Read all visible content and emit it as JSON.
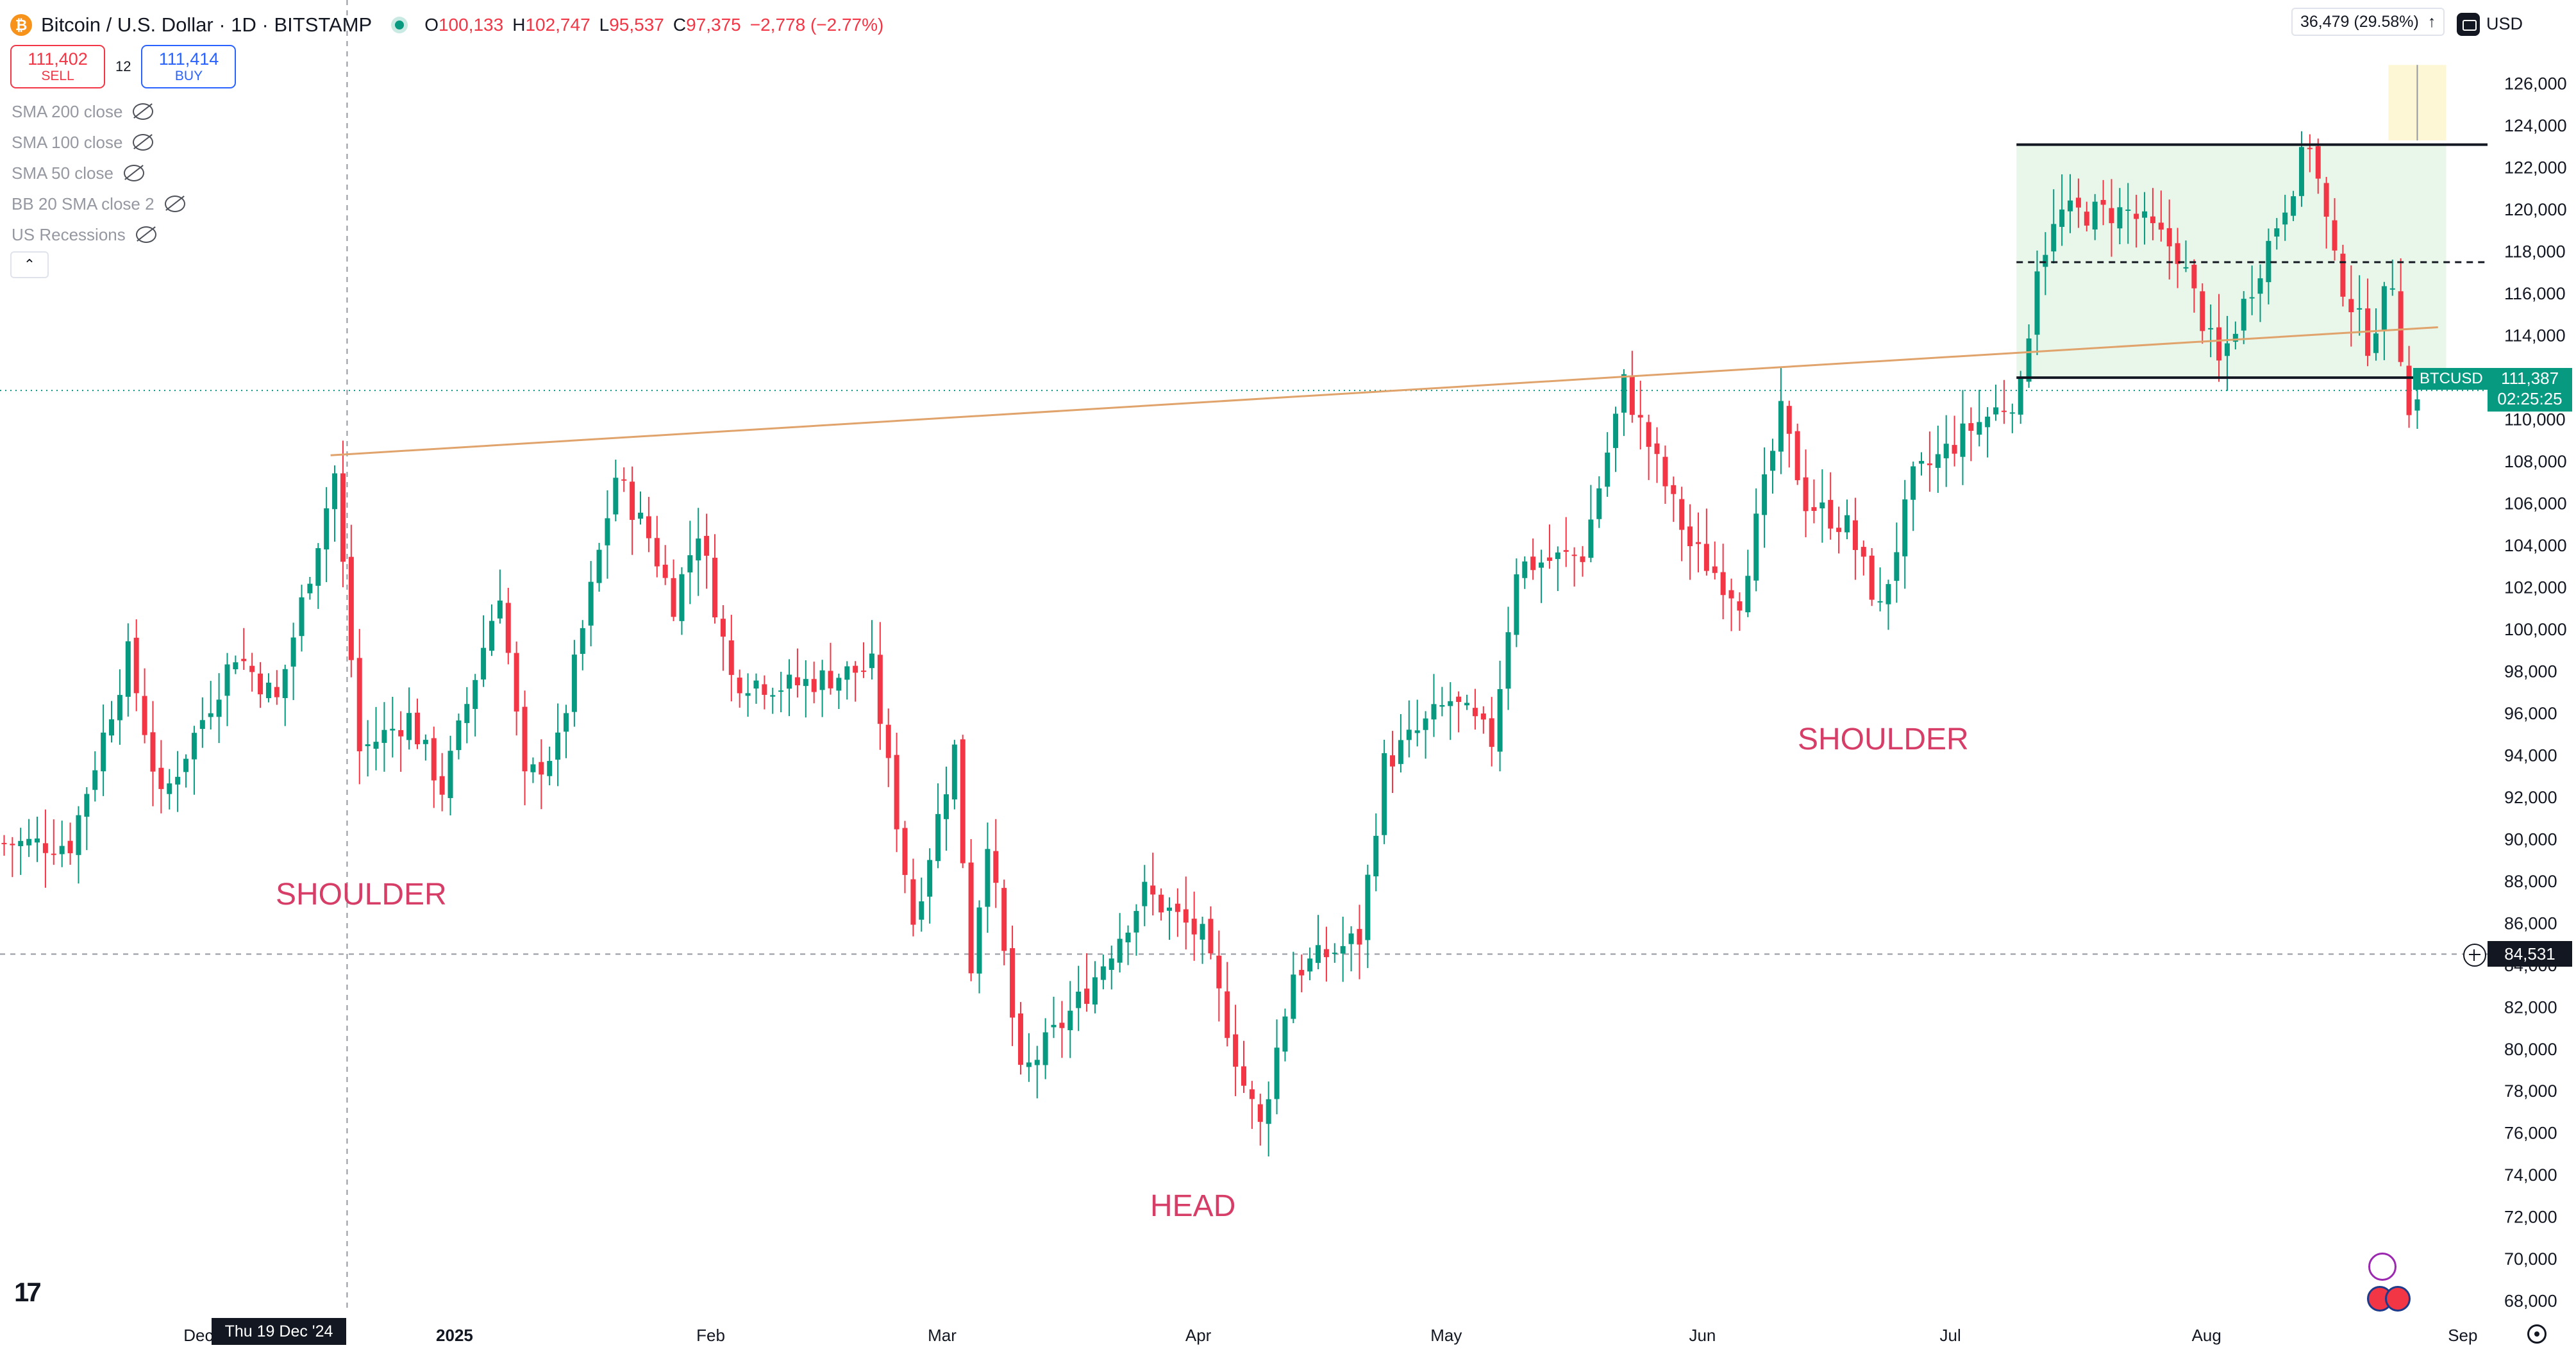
{
  "header": {
    "symbol": "Bitcoin / U.S. Dollar · 1D · BITSTAMP",
    "coin_icon": "bitcoin-icon",
    "o_label": "O",
    "o_value": "100,133",
    "h_label": "H",
    "h_value": "102,747",
    "l_label": "L",
    "l_value": "95,537",
    "c_label": "C",
    "c_value": "97,375",
    "change": "−2,778 (−2.77%)"
  },
  "trade": {
    "sell_price": "111,402",
    "sell_label": "SELL",
    "spread": "12",
    "buy_price": "111,414",
    "buy_label": "BUY"
  },
  "indicators": [
    "SMA 200 close",
    "SMA 100 close",
    "SMA 50 close",
    "BB 20 SMA close 2",
    "US Recessions"
  ],
  "price_axis": {
    "currency": "USD",
    "ticks": [
      "126,000",
      "124,000",
      "122,000",
      "120,000",
      "118,000",
      "116,000",
      "114,000",
      "112,000",
      "110,000",
      "108,000",
      "106,000",
      "104,000",
      "102,000",
      "100,000",
      "98,000",
      "96,000",
      "94,000",
      "92,000",
      "90,000",
      "88,000",
      "86,000",
      "84,000",
      "82,000",
      "80,000",
      "78,000",
      "76,000",
      "74,000",
      "72,000",
      "70,000",
      "68,000"
    ]
  },
  "time_axis": {
    "ticks": [
      "Dec",
      "2025",
      "Feb",
      "Mar",
      "Apr",
      "May",
      "Jun",
      "Jul",
      "Aug",
      "Sep"
    ],
    "crosshair_label": "Thu 19 Dec '24"
  },
  "labels": {
    "symbol_tag": "BTCUSD",
    "last_price": "111,387",
    "countdown": "02:25:25",
    "crosshair_price": "84,531",
    "measure": "36,479 (29.58%)"
  },
  "annotations": {
    "left_shoulder": "SHOULDER",
    "head": "HEAD",
    "right_shoulder": "SHOULDER"
  },
  "colors": {
    "up": "#089981",
    "down": "#f23645",
    "neckline": "#e0a36b",
    "range_fill": "#e9f6ea",
    "annotation": "#d63e68"
  },
  "chart_data": {
    "type": "candlestick",
    "title": "Bitcoin / U.S. Dollar · 1D · BITSTAMP",
    "xlabel": "",
    "ylabel": "",
    "ylim": [
      67500,
      127000
    ],
    "x_range": [
      "2024-11-07",
      "2025-09-04"
    ],
    "last_ohlc": {
      "open": 100133,
      "high": 102747,
      "low": 95537,
      "close": 97375
    },
    "anchors": [
      {
        "date": "2024-11-15",
        "price": 89800
      },
      {
        "date": "2024-11-22",
        "price": 98800
      },
      {
        "date": "2024-11-26",
        "price": 91800
      },
      {
        "date": "2024-12-05",
        "price": 98900
      },
      {
        "date": "2024-12-10",
        "price": 96600
      },
      {
        "date": "2024-12-17",
        "price": 107400
      },
      {
        "date": "2024-12-20",
        "price": 94200
      },
      {
        "date": "2024-12-26",
        "price": 95800
      },
      {
        "date": "2024-12-30",
        "price": 92400
      },
      {
        "date": "2025-01-06",
        "price": 101900
      },
      {
        "date": "2025-01-09",
        "price": 92700
      },
      {
        "date": "2025-01-13",
        "price": 94500
      },
      {
        "date": "2025-01-20",
        "price": 107300
      },
      {
        "date": "2025-01-24",
        "price": 104400
      },
      {
        "date": "2025-01-27",
        "price": 101300
      },
      {
        "date": "2025-01-30",
        "price": 104800
      },
      {
        "date": "2025-02-03",
        "price": 97700
      },
      {
        "date": "2025-02-10",
        "price": 97300
      },
      {
        "date": "2025-02-20",
        "price": 98200
      },
      {
        "date": "2025-02-25",
        "price": 86100
      },
      {
        "date": "2025-03-02",
        "price": 94300
      },
      {
        "date": "2025-03-04",
        "price": 84000
      },
      {
        "date": "2025-03-06",
        "price": 90200
      },
      {
        "date": "2025-03-10",
        "price": 78600
      },
      {
        "date": "2025-03-18",
        "price": 82800
      },
      {
        "date": "2025-03-25",
        "price": 87500
      },
      {
        "date": "2025-04-01",
        "price": 85300
      },
      {
        "date": "2025-04-06",
        "price": 78300
      },
      {
        "date": "2025-04-08",
        "price": 76300
      },
      {
        "date": "2025-04-12",
        "price": 83700
      },
      {
        "date": "2025-04-20",
        "price": 85300
      },
      {
        "date": "2025-04-23",
        "price": 93600
      },
      {
        "date": "2025-05-01",
        "price": 96600
      },
      {
        "date": "2025-05-06",
        "price": 94700
      },
      {
        "date": "2025-05-09",
        "price": 103000
      },
      {
        "date": "2025-05-17",
        "price": 103600
      },
      {
        "date": "2025-05-22",
        "price": 111700
      },
      {
        "date": "2025-05-25",
        "price": 108800
      },
      {
        "date": "2025-05-30",
        "price": 104000
      },
      {
        "date": "2025-06-05",
        "price": 101500
      },
      {
        "date": "2025-06-10",
        "price": 110200
      },
      {
        "date": "2025-06-13",
        "price": 106100
      },
      {
        "date": "2025-06-18",
        "price": 104900
      },
      {
        "date": "2025-06-22",
        "price": 100900
      },
      {
        "date": "2025-06-26",
        "price": 107100
      },
      {
        "date": "2025-07-03",
        "price": 109600
      },
      {
        "date": "2025-07-09",
        "price": 111300
      },
      {
        "date": "2025-07-11",
        "price": 117500
      },
      {
        "date": "2025-07-14",
        "price": 119800
      },
      {
        "date": "2025-07-22",
        "price": 119900
      },
      {
        "date": "2025-07-28",
        "price": 118000
      },
      {
        "date": "2025-08-02",
        "price": 112600
      },
      {
        "date": "2025-08-07",
        "price": 117400
      },
      {
        "date": "2025-08-13",
        "price": 123300
      },
      {
        "date": "2025-08-16",
        "price": 117400
      },
      {
        "date": "2025-08-20",
        "price": 113700
      },
      {
        "date": "2025-08-23",
        "price": 116700
      },
      {
        "date": "2025-08-25",
        "price": 110100
      },
      {
        "date": "2025-08-26",
        "price": 111400
      }
    ],
    "drawings": {
      "neckline": {
        "from": {
          "date": "2024-12-17",
          "price": 108300
        },
        "to": {
          "date": "2025-08-29",
          "price": 114400
        }
      },
      "range_top": 123100,
      "range_mid": 117500,
      "range_bottom": 112000,
      "range_start": "2025-07-09",
      "range_end": "2025-08-30",
      "measure_box": {
        "from": "2025-08-23",
        "to": "2025-08-30",
        "low": 123300,
        "high": 126900
      },
      "last_price_line": 111387,
      "crosshair": {
        "date": "2024-12-19",
        "price": 84531
      }
    }
  }
}
